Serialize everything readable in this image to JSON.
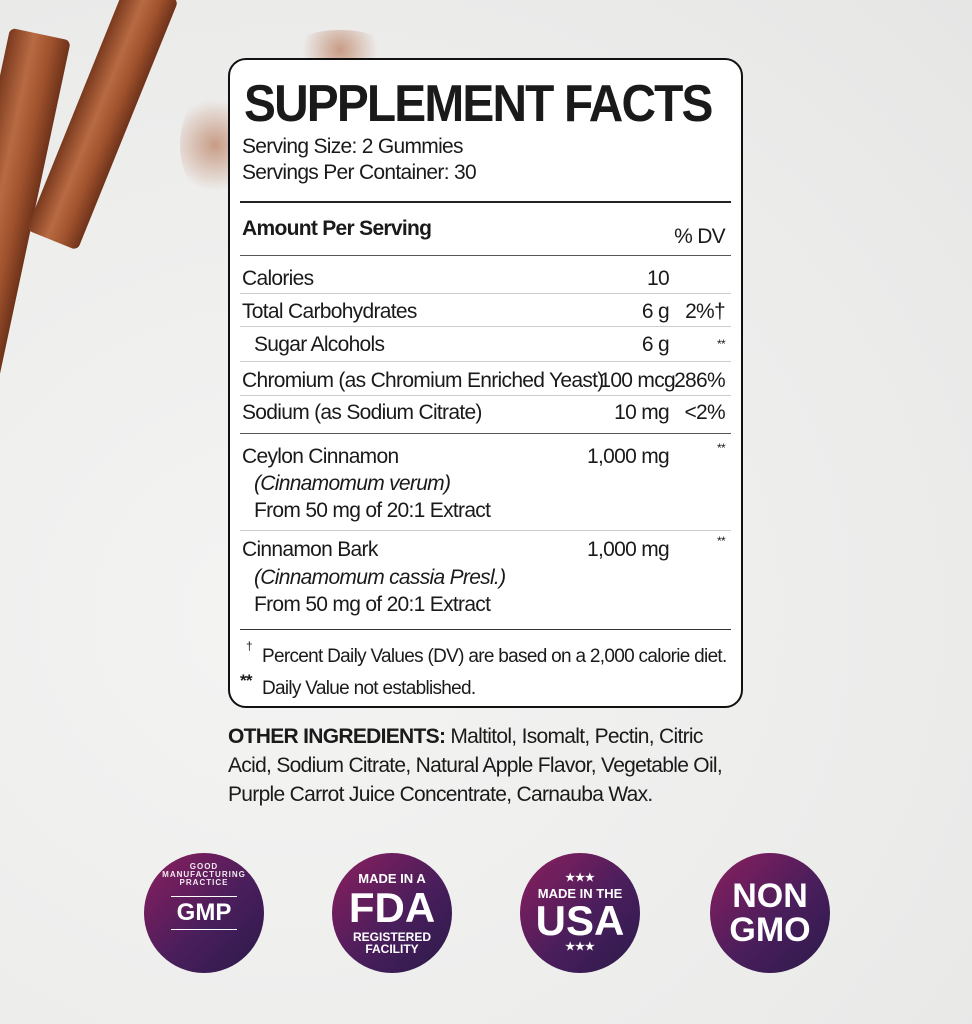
{
  "label": {
    "title": "SUPPLEMENT FACTS",
    "serving_size": "Serving Size: 2 Gummies",
    "servings_per_container": "Servings Per Container: 30",
    "amount_header": "Amount Per Serving",
    "dv_header": "% DV",
    "rows": [
      {
        "name": "Calories",
        "amount": "10",
        "dv": ""
      },
      {
        "name": "Total Carbohydrates",
        "amount": "6 g",
        "dv": "2%†"
      },
      {
        "name": "Sugar Alcohols",
        "amount": "6 g",
        "dv": "**"
      },
      {
        "name": "Chromium (as Chromium Enriched Yeast)",
        "amount": "100 mcg",
        "dv": "286%"
      },
      {
        "name": "Sodium (as Sodium Citrate)",
        "amount": "10 mg",
        "dv": "<2%"
      },
      {
        "name": "Ceylon Cinnamon",
        "latin": "(Cinnamomum verum)",
        "source": "From 50 mg of 20:1 Extract",
        "amount": "1,000 mg",
        "dv": "**"
      },
      {
        "name": "Cinnamon Bark",
        "latin": "(Cinnamomum cassia Presl.)",
        "source": "From 50 mg of 20:1 Extract",
        "amount": "1,000 mg",
        "dv": "**"
      }
    ],
    "footnote_dagger_mark": "†",
    "footnote_dagger": "Percent Daily Values (DV) are based on a 2,000 calorie diet.",
    "footnote_star_mark": "**",
    "footnote_star": "Daily Value not established."
  },
  "other_ingredients": {
    "heading": "OTHER INGREDIENTS:",
    "text": " Maltitol, Isomalt, Pectin, Citric Acid, Sodium Citrate, Natural Apple Flavor, Vegetable Oil, Purple Carrot Juice Concentrate, Carnauba Wax."
  },
  "badges": {
    "gmp": {
      "ring": "GOOD MANUFACTURING PRACTICE",
      "center": "GMP"
    },
    "fda": {
      "top": "MADE IN A",
      "main": "FDA",
      "bottom1": "REGISTERED",
      "bottom2": "FACILITY"
    },
    "usa": {
      "stars": "★★★",
      "top": "MADE IN THE",
      "main": "USA"
    },
    "gmo": {
      "line1": "NON",
      "line2": "GMO"
    }
  },
  "colors": {
    "badge_purple": "#4a1e5c",
    "badge_magenta": "#8c1f5e",
    "cinnamon": "#a0522d"
  }
}
